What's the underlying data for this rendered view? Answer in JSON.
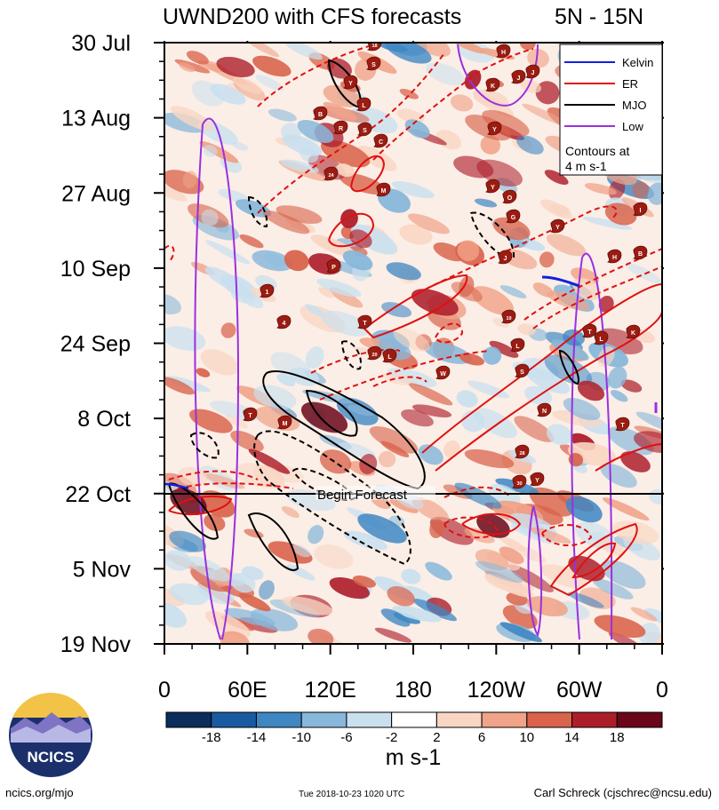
{
  "header": {
    "title": "UWND200 with CFS forecasts",
    "region": "5N - 15N"
  },
  "chart_data": {
    "type": "heatmap",
    "y_axis": {
      "tick_labels": [
        "30 Jul",
        "13 Aug",
        "27 Aug",
        "10 Sep",
        "24 Sep",
        "8 Oct",
        "22 Oct",
        "5 Nov",
        "19 Nov"
      ],
      "range": [
        "2018-07-30",
        "2018-11-19"
      ],
      "direction": "time increases downward"
    },
    "x_axis": {
      "tick_labels": [
        "0",
        "60E",
        "120E",
        "180",
        "120W",
        "60W",
        "0"
      ],
      "range_deg_east": [
        0,
        360
      ]
    },
    "forecast_line": {
      "date": "2018-10-22",
      "label": "Begin Forecast"
    },
    "legend": {
      "placement": "top-right",
      "entries": [
        {
          "name": "Kelvin",
          "color": "#1020e0"
        },
        {
          "name": "ER",
          "color": "#e01010"
        },
        {
          "name": "MJO",
          "color": "#000000"
        },
        {
          "name": "Low",
          "color": "#9a30e0"
        }
      ],
      "note_line1": "Contours at",
      "note_line2": "4 m s-1"
    },
    "colorbar": {
      "tick_labels": [
        "-18",
        "-14",
        "-10",
        "-6",
        "-2",
        "2",
        "6",
        "10",
        "14",
        "18"
      ],
      "colors": [
        "#0a2d5c",
        "#1a5aa0",
        "#3f87c3",
        "#87b7da",
        "#c9e0ef",
        "#ffffff",
        "#f9d6c3",
        "#f0a388",
        "#d9634b",
        "#ad1e2b",
        "#6a0619"
      ],
      "units": "m s-1"
    },
    "storm_markers": [
      "18",
      "S",
      "Y",
      "L",
      "B",
      "R",
      "S",
      "C",
      "24",
      "H",
      "K",
      "J",
      "J",
      "Y",
      "M",
      "Y",
      "O",
      "G",
      "Y",
      "I",
      "H",
      "B",
      "P",
      "J",
      "1",
      "4",
      "T",
      "19",
      "T",
      "L",
      "K",
      "20",
      "L",
      "W",
      "S",
      "L",
      "T",
      "M",
      "N",
      "T",
      "28",
      "30",
      "Y"
    ]
  },
  "footer": {
    "url": "ncics.org/mjo",
    "timestamp": "Tue 2018-10-23 1020 UTC",
    "author": "Carl Schreck (cjschrec@ncsu.edu)",
    "logo_text": "NCICS"
  }
}
